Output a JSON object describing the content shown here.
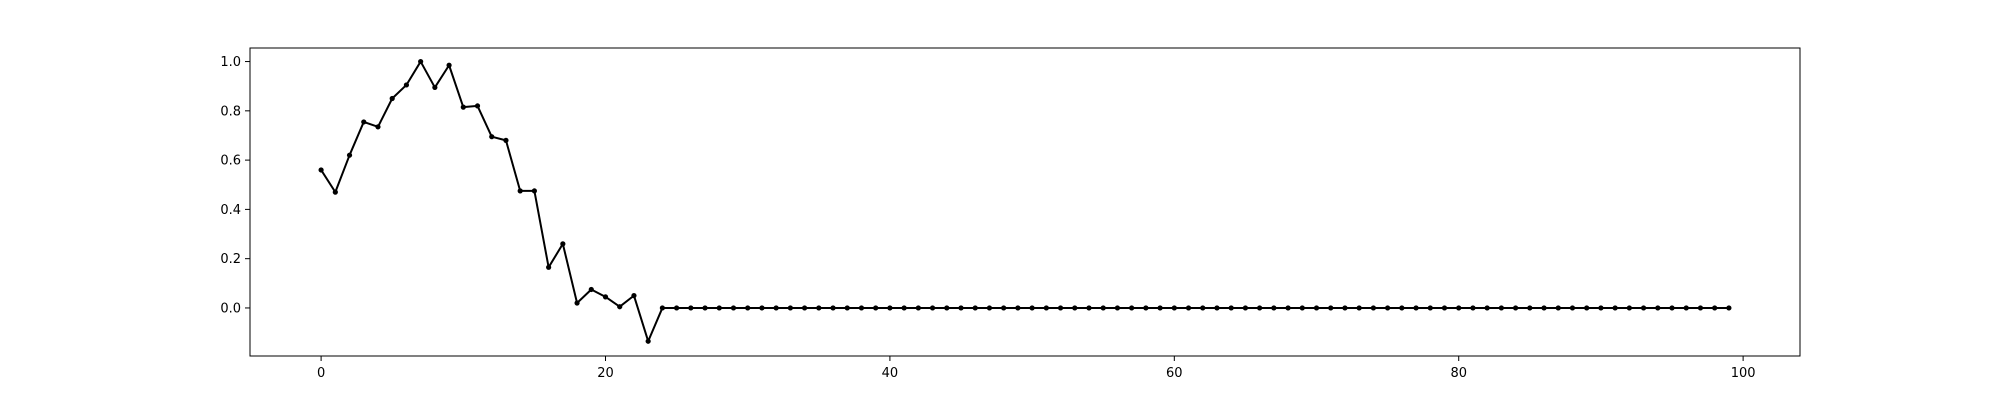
{
  "chart_data": {
    "type": "line",
    "title": "",
    "xlabel": "",
    "ylabel": "",
    "xlim": [
      -5,
      104
    ],
    "ylim": [
      -0.195,
      1.055
    ],
    "xticks": [
      0,
      20,
      40,
      60,
      80,
      100
    ],
    "yticks": [
      0.0,
      0.2,
      0.4,
      0.6,
      0.8,
      1.0
    ],
    "xtick_labels": [
      "0",
      "20",
      "40",
      "60",
      "80",
      "100"
    ],
    "ytick_labels": [
      "0.0",
      "0.2",
      "0.4",
      "0.6",
      "0.8",
      "1.0"
    ],
    "grid": false,
    "legend": "none",
    "marker": "point",
    "color": "#000000",
    "series": [
      {
        "x": [
          0,
          1,
          2,
          3,
          4,
          5,
          6,
          7,
          8,
          9,
          10,
          11,
          12,
          13,
          14,
          15,
          16,
          17,
          18,
          19,
          20,
          21,
          22,
          23,
          24,
          25,
          26,
          27,
          28,
          29,
          30,
          31,
          32,
          33,
          34,
          35,
          36,
          37,
          38,
          39,
          40,
          41,
          42,
          43,
          44,
          45,
          46,
          47,
          48,
          49,
          50,
          51,
          52,
          53,
          54,
          55,
          56,
          57,
          58,
          59,
          60,
          61,
          62,
          63,
          64,
          65,
          66,
          67,
          68,
          69,
          70,
          71,
          72,
          73,
          74,
          75,
          76,
          77,
          78,
          79,
          80,
          81,
          82,
          83,
          84,
          85,
          86,
          87,
          88,
          89,
          90,
          91,
          92,
          93,
          94,
          95,
          96,
          97,
          98,
          99
        ],
        "y": [
          0.56,
          0.47,
          0.62,
          0.755,
          0.735,
          0.85,
          0.905,
          1.0,
          0.895,
          0.985,
          0.815,
          0.82,
          0.695,
          0.68,
          0.475,
          0.475,
          0.165,
          0.26,
          0.02,
          0.075,
          0.045,
          0.005,
          0.05,
          -0.135,
          0,
          0,
          0,
          0,
          0,
          0,
          0,
          0,
          0,
          0,
          0,
          0,
          0,
          0,
          0,
          0,
          0,
          0,
          0,
          0,
          0,
          0,
          0,
          0,
          0,
          0,
          0,
          0,
          0,
          0,
          0,
          0,
          0,
          0,
          0,
          0,
          0,
          0,
          0,
          0,
          0,
          0,
          0,
          0,
          0,
          0,
          0,
          0,
          0,
          0,
          0,
          0,
          0,
          0,
          0,
          0,
          0,
          0,
          0,
          0,
          0,
          0,
          0,
          0,
          0,
          0,
          0,
          0,
          0,
          0,
          0,
          0,
          0,
          0,
          0,
          0
        ]
      }
    ]
  }
}
